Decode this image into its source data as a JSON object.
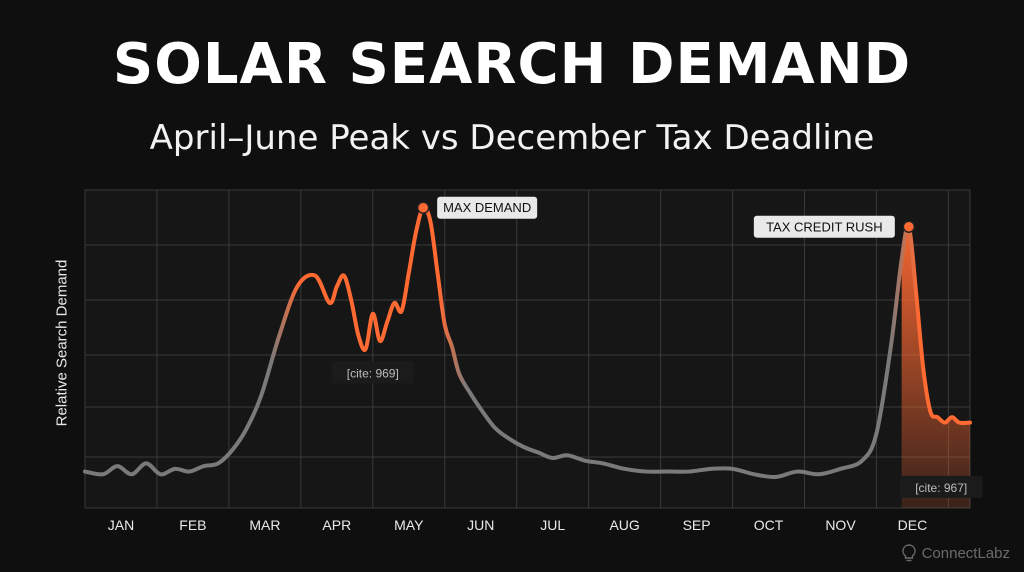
{
  "chart_data": {
    "type": "area",
    "title": "SOLAR SEARCH DEMAND",
    "subtitle": "April–June Peak vs December Tax Deadline",
    "ylabel": "Relative Search Demand",
    "xlabel": "",
    "categories": [
      "JAN",
      "FEB",
      "MAR",
      "APR",
      "MAY",
      "JUN",
      "JUL",
      "AUG",
      "SEP",
      "OCT",
      "NOV",
      "DEC"
    ],
    "x_range": [
      0.5,
      12.8
    ],
    "ylim": [
      0,
      100
    ],
    "grid": true,
    "highlight_ranges": [
      [
        3.2,
        5.7
      ],
      [
        11.8,
        12.8
      ]
    ],
    "series": [
      {
        "x": [
          0.5,
          0.75,
          0.95,
          1.15,
          1.35,
          1.55,
          1.75,
          1.95,
          2.15,
          2.35,
          2.55,
          2.75,
          2.95,
          3.2,
          3.45,
          3.7,
          3.9,
          4.0,
          4.1,
          4.2,
          4.3,
          4.4,
          4.5,
          4.6,
          4.7,
          4.8,
          4.9,
          5.0,
          5.1,
          5.2,
          5.3,
          5.4,
          5.5,
          5.6,
          5.7,
          5.85,
          6.0,
          6.2,
          6.4,
          6.6,
          6.8,
          7.0,
          7.2,
          7.45,
          7.7,
          8.0,
          8.3,
          8.6,
          8.9,
          9.2,
          9.5,
          9.8,
          10.1,
          10.4,
          10.7,
          11.0,
          11.3,
          11.5,
          11.7,
          11.85,
          11.95,
          12.05,
          12.15,
          12.25,
          12.35,
          12.45,
          12.55,
          12.65,
          12.8
        ],
        "y": [
          2,
          1,
          4,
          1,
          5,
          1,
          3,
          2,
          4,
          5,
          10,
          18,
          30,
          52,
          70,
          74,
          64,
          70,
          74,
          65,
          52,
          47,
          60,
          50,
          57,
          64,
          61,
          75,
          90,
          99,
          94,
          75,
          56,
          48,
          38,
          31,
          25,
          18,
          14,
          11,
          9,
          7,
          8,
          6,
          5,
          3,
          2,
          2,
          2,
          3,
          3,
          1,
          0,
          2,
          1,
          3,
          6,
          16,
          48,
          80,
          92,
          68,
          40,
          24,
          22,
          20,
          22,
          20,
          20
        ]
      }
    ],
    "annotations": [
      {
        "text": "MAX DEMAND",
        "x": 5.2,
        "y": 99
      },
      {
        "text": "TAX CREDIT RUSH",
        "x": 11.95,
        "y": 92
      }
    ],
    "notes": [
      {
        "text": "[cite: 969]",
        "x": 4.5,
        "y": 38
      },
      {
        "text": "[cite: 967]",
        "x": 12.4,
        "y": -4
      }
    ]
  },
  "brand": {
    "name": "ConnectLabz",
    "icon": "lightbulb-icon"
  },
  "colors": {
    "background": "#0f0f0f",
    "highlight": "#ff6a33",
    "line": "#7a7a7a",
    "grid": "#3a3a3a"
  }
}
